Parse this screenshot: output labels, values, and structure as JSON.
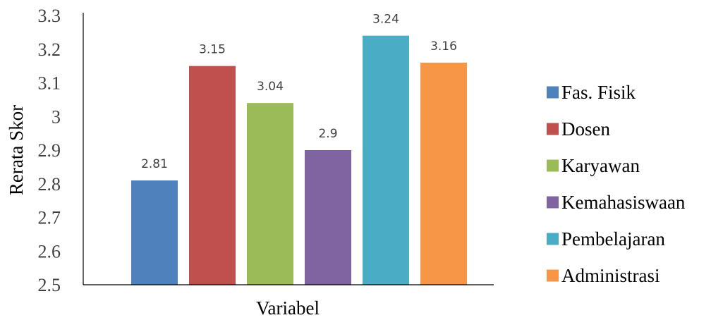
{
  "chart_data": {
    "type": "bar",
    "title": "",
    "xlabel": "Variabel",
    "ylabel": "Rerata Skor",
    "ylim": [
      2.5,
      3.3
    ],
    "yticks": [
      "2.5",
      "2.6",
      "2.7",
      "2.8",
      "2.9",
      "3",
      "3.1",
      "3.2",
      "3.3"
    ],
    "grid": false,
    "legend_position": "right",
    "series": [
      {
        "name": "Fas. Fisik",
        "value": 2.81,
        "label": "2.81",
        "color": "#4F81BD"
      },
      {
        "name": "Dosen",
        "value": 3.15,
        "label": "3.15",
        "color": "#C0504D"
      },
      {
        "name": "Karyawan",
        "value": 3.04,
        "label": "3.04",
        "color": "#9BBB59"
      },
      {
        "name": "Kemahasiswaan",
        "value": 2.9,
        "label": "2.9",
        "color": "#8064A2"
      },
      {
        "name": "Pembelajaran",
        "value": 3.24,
        "label": "3.24",
        "color": "#4BACC6"
      },
      {
        "name": "Administrasi",
        "value": 3.16,
        "label": "3.16",
        "color": "#F79646"
      }
    ]
  }
}
